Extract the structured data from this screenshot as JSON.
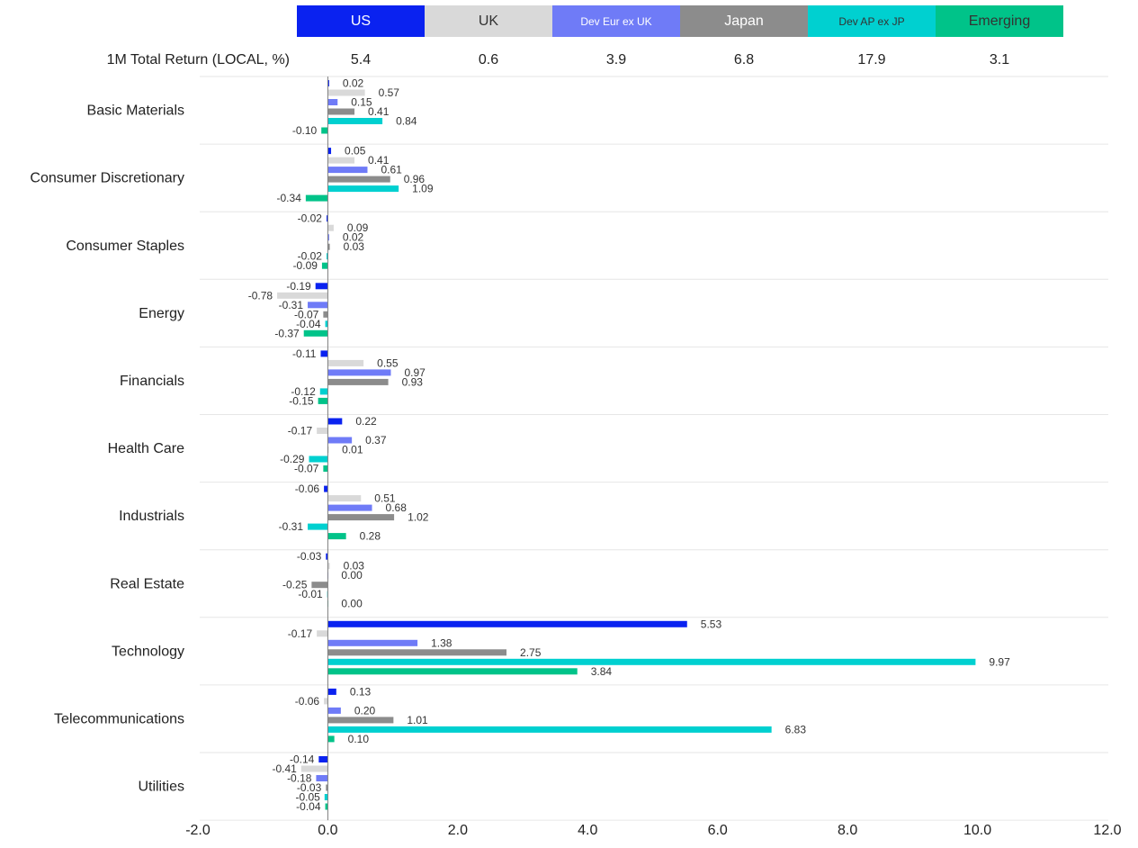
{
  "legend": [
    {
      "name": "US",
      "color": "#0a22f0",
      "text_color": "#ffffff",
      "small": false
    },
    {
      "name": "UK",
      "color": "#d9d9d9",
      "text_color": "#333333",
      "small": false
    },
    {
      "name": "Dev Eur ex UK",
      "color": "#6f7bf7",
      "text_color": "#ffffff",
      "small": true
    },
    {
      "name": "Japan",
      "color": "#8c8c8c",
      "text_color": "#ffffff",
      "small": false
    },
    {
      "name": "Dev AP ex JP",
      "color": "#00d0d0",
      "text_color": "#333333",
      "small": true
    },
    {
      "name": "Emerging",
      "color": "#00c389",
      "text_color": "#333333",
      "small": false
    }
  ],
  "returns": {
    "label": "1M Total Return (LOCAL, %)",
    "values": [
      "5.4",
      "0.6",
      "3.9",
      "6.8",
      "17.9",
      "3.1"
    ]
  },
  "chart_data": {
    "type": "bar",
    "orientation": "horizontal",
    "categories": [
      "Basic Materials",
      "Consumer Discretionary",
      "Consumer Staples",
      "Energy",
      "Financials",
      "Health Care",
      "Industrials",
      "Real Estate",
      "Technology",
      "Telecommunications",
      "Utilities"
    ],
    "series": [
      {
        "name": "US",
        "values": [
          0.02,
          0.05,
          -0.02,
          -0.19,
          -0.11,
          0.22,
          -0.06,
          -0.03,
          5.53,
          0.13,
          -0.14
        ]
      },
      {
        "name": "UK",
        "values": [
          0.57,
          0.41,
          0.09,
          -0.78,
          0.55,
          -0.17,
          0.51,
          0.03,
          -0.17,
          -0.06,
          -0.41
        ]
      },
      {
        "name": "Dev Eur ex UK",
        "values": [
          0.15,
          0.61,
          0.02,
          -0.31,
          0.97,
          0.37,
          0.68,
          0.0,
          1.38,
          0.2,
          -0.18
        ]
      },
      {
        "name": "Japan",
        "values": [
          0.41,
          0.96,
          0.03,
          -0.07,
          0.93,
          0.01,
          1.02,
          -0.25,
          2.75,
          1.01,
          -0.03
        ]
      },
      {
        "name": "Dev AP ex JP",
        "values": [
          0.84,
          1.09,
          -0.02,
          -0.04,
          -0.12,
          -0.29,
          -0.31,
          -0.01,
          9.97,
          6.83,
          -0.05
        ]
      },
      {
        "name": "Emerging",
        "values": [
          -0.1,
          -0.34,
          -0.09,
          -0.37,
          -0.15,
          -0.07,
          0.28,
          0.0,
          3.84,
          0.1,
          -0.04
        ]
      }
    ],
    "label_texts": [
      [
        "0.02",
        "0.05",
        "-0.02",
        "-0.19",
        "-0.11",
        "0.22",
        "-0.06",
        "-0.03",
        "5.53",
        "0.13",
        "-0.14"
      ],
      [
        "0.57",
        "0.41",
        "0.09",
        "-0.78",
        "0.55",
        "-0.17",
        "0.51",
        "0.03",
        "-0.17",
        "-0.06",
        "-0.41"
      ],
      [
        "0.15",
        "0.61",
        "0.02",
        "-0.31",
        "0.97",
        "0.37",
        "0.68",
        "0.00",
        "1.38",
        "0.20",
        "-0.18"
      ],
      [
        "0.41",
        "0.96",
        "0.03",
        "-0.07",
        "0.93",
        "0.01",
        "1.02",
        "-0.25",
        "2.75",
        "1.01",
        "-0.03"
      ],
      [
        "0.84",
        "1.09",
        "-0.02",
        "-0.04",
        "-0.12",
        "-0.29",
        "-0.31",
        "-0.01",
        "9.97",
        "6.83",
        "-0.05"
      ],
      [
        "-0.10",
        "-0.34",
        "-0.09",
        "-0.37",
        "-0.15",
        "-0.07",
        "0.28",
        "0.00",
        "3.84",
        "0.10",
        "-0.04"
      ]
    ],
    "xlim": [
      -2.0,
      12.0
    ],
    "xticks": [
      "-2.0",
      "0.0",
      "2.0",
      "4.0",
      "6.0",
      "8.0",
      "10.0",
      "12.0"
    ],
    "xlabel": "",
    "ylabel": "",
    "title": ""
  }
}
